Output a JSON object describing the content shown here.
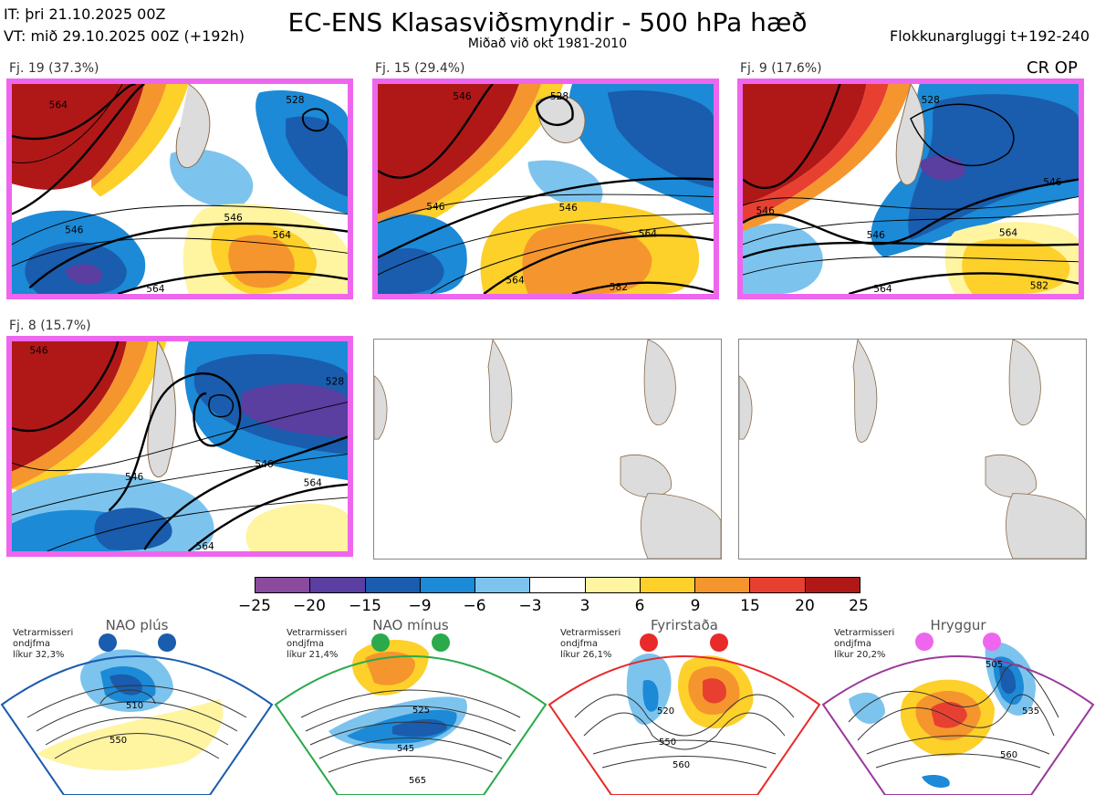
{
  "header": {
    "it_line": "IT: þri 21.10.2025 00Z",
    "vt_line": "VT: mið 29.10.2025 00Z  (+192h)",
    "title": "EC-ENS Klasasviðsmyndir - 500 hPa hæð",
    "subtitle": "Miðað við okt 1981-2010",
    "window": "Flokkunargluggi t+192-240",
    "cr_label": "CR OP"
  },
  "panels": [
    {
      "label": "Fj. 19 (37.3%)",
      "contours": [
        "564",
        "546",
        "528",
        "546",
        "564",
        "564"
      ]
    },
    {
      "label": "Fj. 15 (29.4%)",
      "contours": [
        "528",
        "546",
        "546",
        "564",
        "564",
        "582",
        "546"
      ]
    },
    {
      "label": "Fj. 9 (17.6%)",
      "contours": [
        "546",
        "546",
        "546",
        "564",
        "564",
        "582",
        "528"
      ]
    },
    {
      "label": "Fj. 8 (15.7%)",
      "contours": [
        "546",
        "528",
        "546",
        "564",
        "564",
        "546"
      ]
    }
  ],
  "colorbar": {
    "colors": [
      "#8a4a9e",
      "#5a3ea0",
      "#1a5cad",
      "#1c8ad6",
      "#7cc4ee",
      "#ffffff",
      "#fff4a0",
      "#fdd02a",
      "#f5952e",
      "#e84030",
      "#b01818"
    ],
    "ticks": [
      "−25",
      "−20",
      "−15",
      "−9",
      "−6",
      "−3",
      "3",
      "6",
      "9",
      "15",
      "20",
      "25"
    ]
  },
  "regimes": [
    {
      "name": "NAO plús",
      "line1": "Vetrarmisseri",
      "line2": "ondjfma",
      "line3": "líkur 32,3%",
      "accent": "#1a5cad",
      "contours": [
        "510",
        "550"
      ]
    },
    {
      "name": "NAO mínus",
      "line1": "Vetrarmisseri",
      "line2": "ondjfma",
      "line3": "líkur 21,4%",
      "accent": "#2aaa4a",
      "contours": [
        "525",
        "545",
        "565"
      ]
    },
    {
      "name": "Fyrirstaða",
      "line1": "Vetrarmisseri",
      "line2": "ondjfma",
      "line3": "líkur 26,1%",
      "accent": "#e82a2a",
      "contours": [
        "520",
        "550",
        "560"
      ]
    },
    {
      "name": "Hryggur",
      "line1": "Vetrarmisseri",
      "line2": "ondjfma",
      "line3": "líkur 20,2%",
      "accent": "#9a3a9a",
      "dot_color": "#ee66ee",
      "contours": [
        "505",
        "535",
        "560"
      ]
    }
  ]
}
